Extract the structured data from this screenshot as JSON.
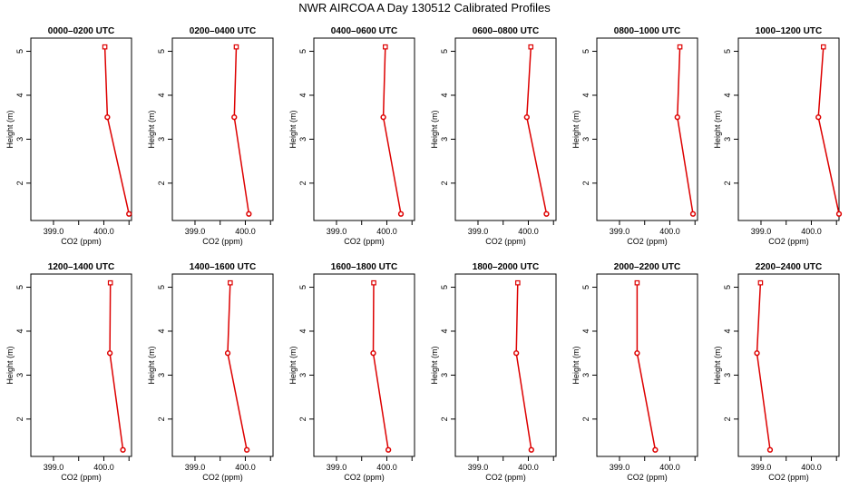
{
  "figure": {
    "title": "NWR AIRCOA A  Day 130512  Calibrated Profiles"
  },
  "chart_data": [
    {
      "type": "line",
      "title": "0000–0200 UTC",
      "xlabel": "CO2 (ppm)",
      "ylabel": "Height (m)",
      "xlim": [
        398.55,
        400.55
      ],
      "ylim": [
        1.15,
        5.3
      ],
      "xticks": [
        399.0,
        400.0
      ],
      "xtick_labels": [
        "399.0",
        "400.0"
      ],
      "extra_xticks": [
        399.5,
        400.5
      ],
      "yticks": [
        2,
        3,
        4,
        5
      ],
      "series": [
        {
          "x": [
            400.5,
            400.07,
            400.02
          ],
          "y": [
            1.3,
            3.5,
            5.1
          ]
        }
      ]
    },
    {
      "type": "line",
      "title": "0200–0400 UTC",
      "xlabel": "CO2 (ppm)",
      "ylabel": "Height (m)",
      "xlim": [
        398.55,
        400.55
      ],
      "ylim": [
        1.15,
        5.3
      ],
      "xticks": [
        399.0,
        400.0
      ],
      "xtick_labels": [
        "399.0",
        "400.0"
      ],
      "extra_xticks": [
        399.5,
        400.5
      ],
      "yticks": [
        2,
        3,
        4,
        5
      ],
      "series": [
        {
          "x": [
            400.07,
            399.78,
            399.82
          ],
          "y": [
            1.3,
            3.5,
            5.1
          ]
        }
      ]
    },
    {
      "type": "line",
      "title": "0400–0600 UTC",
      "xlabel": "CO2 (ppm)",
      "ylabel": "Height (m)",
      "xlim": [
        398.55,
        400.55
      ],
      "ylim": [
        1.15,
        5.3
      ],
      "xticks": [
        399.0,
        400.0
      ],
      "xtick_labels": [
        "399.0",
        "400.0"
      ],
      "extra_xticks": [
        399.5,
        400.5
      ],
      "yticks": [
        2,
        3,
        4,
        5
      ],
      "series": [
        {
          "x": [
            400.28,
            399.93,
            399.97
          ],
          "y": [
            1.3,
            3.5,
            5.1
          ]
        }
      ]
    },
    {
      "type": "line",
      "title": "0600–0800 UTC",
      "xlabel": "CO2 (ppm)",
      "ylabel": "Height (m)",
      "xlim": [
        398.55,
        400.55
      ],
      "ylim": [
        1.15,
        5.3
      ],
      "xticks": [
        399.0,
        400.0
      ],
      "xtick_labels": [
        "399.0",
        "400.0"
      ],
      "extra_xticks": [
        399.5,
        400.5
      ],
      "yticks": [
        2,
        3,
        4,
        5
      ],
      "series": [
        {
          "x": [
            400.36,
            399.97,
            400.05
          ],
          "y": [
            1.3,
            3.5,
            5.1
          ]
        }
      ]
    },
    {
      "type": "line",
      "title": "0800–1000 UTC",
      "xlabel": "CO2 (ppm)",
      "ylabel": "Height (m)",
      "xlim": [
        398.55,
        400.55
      ],
      "ylim": [
        1.15,
        5.3
      ],
      "xticks": [
        399.0,
        400.0
      ],
      "xtick_labels": [
        "399.0",
        "400.0"
      ],
      "extra_xticks": [
        399.5,
        400.5
      ],
      "yticks": [
        2,
        3,
        4,
        5
      ],
      "series": [
        {
          "x": [
            400.46,
            400.15,
            400.2
          ],
          "y": [
            1.3,
            3.5,
            5.1
          ]
        }
      ]
    },
    {
      "type": "line",
      "title": "1000–1200 UTC",
      "xlabel": "CO2 (ppm)",
      "ylabel": "Height (m)",
      "xlim": [
        398.55,
        400.55
      ],
      "ylim": [
        1.15,
        5.3
      ],
      "xticks": [
        399.0,
        400.0
      ],
      "xtick_labels": [
        "399.0",
        "400.0"
      ],
      "extra_xticks": [
        399.5,
        400.5
      ],
      "yticks": [
        2,
        3,
        4,
        5
      ],
      "series": [
        {
          "x": [
            400.55,
            400.14,
            400.24
          ],
          "y": [
            1.3,
            3.5,
            5.1
          ]
        }
      ]
    },
    {
      "type": "line",
      "title": "1200–1400 UTC",
      "xlabel": "CO2 (ppm)",
      "ylabel": "Height (m)",
      "xlim": [
        398.55,
        400.55
      ],
      "ylim": [
        1.15,
        5.3
      ],
      "xticks": [
        399.0,
        400.0
      ],
      "xtick_labels": [
        "399.0",
        "400.0"
      ],
      "extra_xticks": [
        399.5,
        400.5
      ],
      "yticks": [
        2,
        3,
        4,
        5
      ],
      "series": [
        {
          "x": [
            400.38,
            400.12,
            400.13
          ],
          "y": [
            1.3,
            3.5,
            5.1
          ]
        }
      ]
    },
    {
      "type": "line",
      "title": "1400–1600 UTC",
      "xlabel": "CO2 (ppm)",
      "ylabel": "Height (m)",
      "xlim": [
        398.55,
        400.55
      ],
      "ylim": [
        1.15,
        5.3
      ],
      "xticks": [
        399.0,
        400.0
      ],
      "xtick_labels": [
        "399.0",
        "400.0"
      ],
      "extra_xticks": [
        399.5,
        400.5
      ],
      "yticks": [
        2,
        3,
        4,
        5
      ],
      "series": [
        {
          "x": [
            400.03,
            399.65,
            399.7
          ],
          "y": [
            1.3,
            3.5,
            5.1
          ]
        }
      ]
    },
    {
      "type": "line",
      "title": "1600–1800 UTC",
      "xlabel": "CO2 (ppm)",
      "ylabel": "Height (m)",
      "xlim": [
        398.55,
        400.55
      ],
      "ylim": [
        1.15,
        5.3
      ],
      "xticks": [
        399.0,
        400.0
      ],
      "xtick_labels": [
        "399.0",
        "400.0"
      ],
      "extra_xticks": [
        399.5,
        400.5
      ],
      "yticks": [
        2,
        3,
        4,
        5
      ],
      "series": [
        {
          "x": [
            400.03,
            399.73,
            399.74
          ],
          "y": [
            1.3,
            3.5,
            5.1
          ]
        }
      ]
    },
    {
      "type": "line",
      "title": "1800–2000 UTC",
      "xlabel": "CO2 (ppm)",
      "ylabel": "Height (m)",
      "xlim": [
        398.55,
        400.55
      ],
      "ylim": [
        1.15,
        5.3
      ],
      "xticks": [
        399.0,
        400.0
      ],
      "xtick_labels": [
        "399.0",
        "400.0"
      ],
      "extra_xticks": [
        399.5,
        400.5
      ],
      "yticks": [
        2,
        3,
        4,
        5
      ],
      "series": [
        {
          "x": [
            400.06,
            399.76,
            399.79
          ],
          "y": [
            1.3,
            3.5,
            5.1
          ]
        }
      ]
    },
    {
      "type": "line",
      "title": "2000–2200 UTC",
      "xlabel": "CO2 (ppm)",
      "ylabel": "Height (m)",
      "xlim": [
        398.55,
        400.55
      ],
      "ylim": [
        1.15,
        5.3
      ],
      "xticks": [
        399.0,
        400.0
      ],
      "xtick_labels": [
        "399.0",
        "400.0"
      ],
      "extra_xticks": [
        399.5,
        400.5
      ],
      "yticks": [
        2,
        3,
        4,
        5
      ],
      "series": [
        {
          "x": [
            399.71,
            399.35,
            399.35
          ],
          "y": [
            1.3,
            3.5,
            5.1
          ]
        }
      ]
    },
    {
      "type": "line",
      "title": "2200–2400 UTC",
      "xlabel": "CO2 (ppm)",
      "ylabel": "Height (m)",
      "xlim": [
        398.55,
        400.55
      ],
      "ylim": [
        1.15,
        5.3
      ],
      "xticks": [
        399.0,
        400.0
      ],
      "xtick_labels": [
        "399.0",
        "400.0"
      ],
      "extra_xticks": [
        399.5,
        400.5
      ],
      "yticks": [
        2,
        3,
        4,
        5
      ],
      "series": [
        {
          "x": [
            399.18,
            398.92,
            398.99
          ],
          "y": [
            1.3,
            3.5,
            5.1
          ]
        }
      ]
    }
  ],
  "colors": {
    "series": "#dd0000",
    "marker_fill": "#ffffff",
    "axis": "#000000"
  },
  "markers": [
    "circle",
    "circle",
    "square"
  ]
}
